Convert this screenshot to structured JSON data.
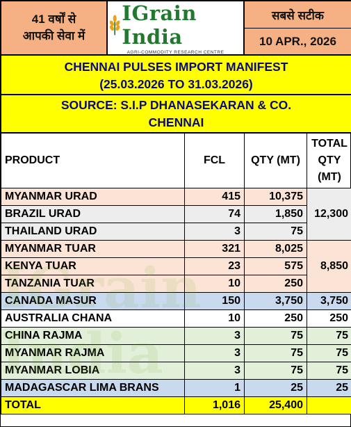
{
  "header": {
    "left_line1": "41 वर्षों से",
    "left_line2": "आपकी सेवा में",
    "logo_name": "IGrain India",
    "logo_tagline": "AGRI-COMMODITY RESEARCH CENTRE",
    "right_line1": "सबसे सटीक",
    "date": "10 APR., 2026"
  },
  "title": {
    "line1": "CHENNAI PULSES IMPORT MANIFEST",
    "line2": "(25.03.2026 TO 31.03.2026)"
  },
  "source": {
    "line1": "SOURCE: S.I.P DHANASEKARAN & CO.",
    "line2": "CHENNAI"
  },
  "table": {
    "headers": {
      "product": "PRODUCT",
      "fcl": "FCL",
      "qty": "QTY (MT)",
      "total": "TOTAL QTY (MT)"
    },
    "rows": [
      {
        "product": "MYANMAR URAD",
        "fcl": "415",
        "qty": "10,375",
        "bg": "#fbe4d5"
      },
      {
        "product": "BRAZIL URAD",
        "fcl": "74",
        "qty": "1,850",
        "bg": "#ededed"
      },
      {
        "product": "THAILAND URAD",
        "fcl": "3",
        "qty": "75",
        "bg": "#ededed"
      },
      {
        "product": "MYANMAR TUAR",
        "fcl": "321",
        "qty": "8,025",
        "bg": "#fbe4d5"
      },
      {
        "product": "KENYA TUAR",
        "fcl": "23",
        "qty": "575",
        "bg": "#fbe4d5"
      },
      {
        "product": "TANZANIA TUAR",
        "fcl": "10",
        "qty": "250",
        "bg": "#fbe4d5"
      },
      {
        "product": "CANADA MASUR",
        "fcl": "150",
        "qty": "3,750",
        "bg": "#c9d9ee"
      },
      {
        "product": "AUSTRALIA CHANA",
        "fcl": "10",
        "qty": "250",
        "bg": "#ffffff"
      },
      {
        "product": "CHINA RAJMA",
        "fcl": "3",
        "qty": "75",
        "bg": "#e2efd9"
      },
      {
        "product": "MYANMAR RAJMA",
        "fcl": "3",
        "qty": "75",
        "bg": "#e2efd9"
      },
      {
        "product": "MYANMAR LOBIA",
        "fcl": "3",
        "qty": "75",
        "bg": "#e2efd9"
      },
      {
        "product": "MADAGASCAR LIMA BRANS",
        "fcl": "1",
        "qty": "25",
        "bg": "#c9d9ee"
      }
    ],
    "group_totals": [
      {
        "value": "12,300",
        "span": 3,
        "bg": "#ededed"
      },
      {
        "value": "8,850",
        "span": 3,
        "bg": "#fbe4d5"
      },
      {
        "value": "3,750",
        "span": 1,
        "bg": "#c9d9ee"
      },
      {
        "value": "250",
        "span": 1,
        "bg": "#ffffff"
      },
      {
        "value": "75",
        "span": 1,
        "bg": "#e2efd9"
      },
      {
        "value": "75",
        "span": 1,
        "bg": "#e2efd9"
      },
      {
        "value": "75",
        "span": 1,
        "bg": "#e2efd9"
      },
      {
        "value": "25",
        "span": 1,
        "bg": "#c9d9ee"
      }
    ],
    "total_row": {
      "label": "TOTAL",
      "fcl": "1,016",
      "qty": "25,400",
      "bg": "#ffff00"
    }
  },
  "colors": {
    "header_orange": "#f5b183",
    "title_yellow": "#ffff00",
    "title_text": "#0a0a7a",
    "logo_green": "#1f7a2e"
  }
}
